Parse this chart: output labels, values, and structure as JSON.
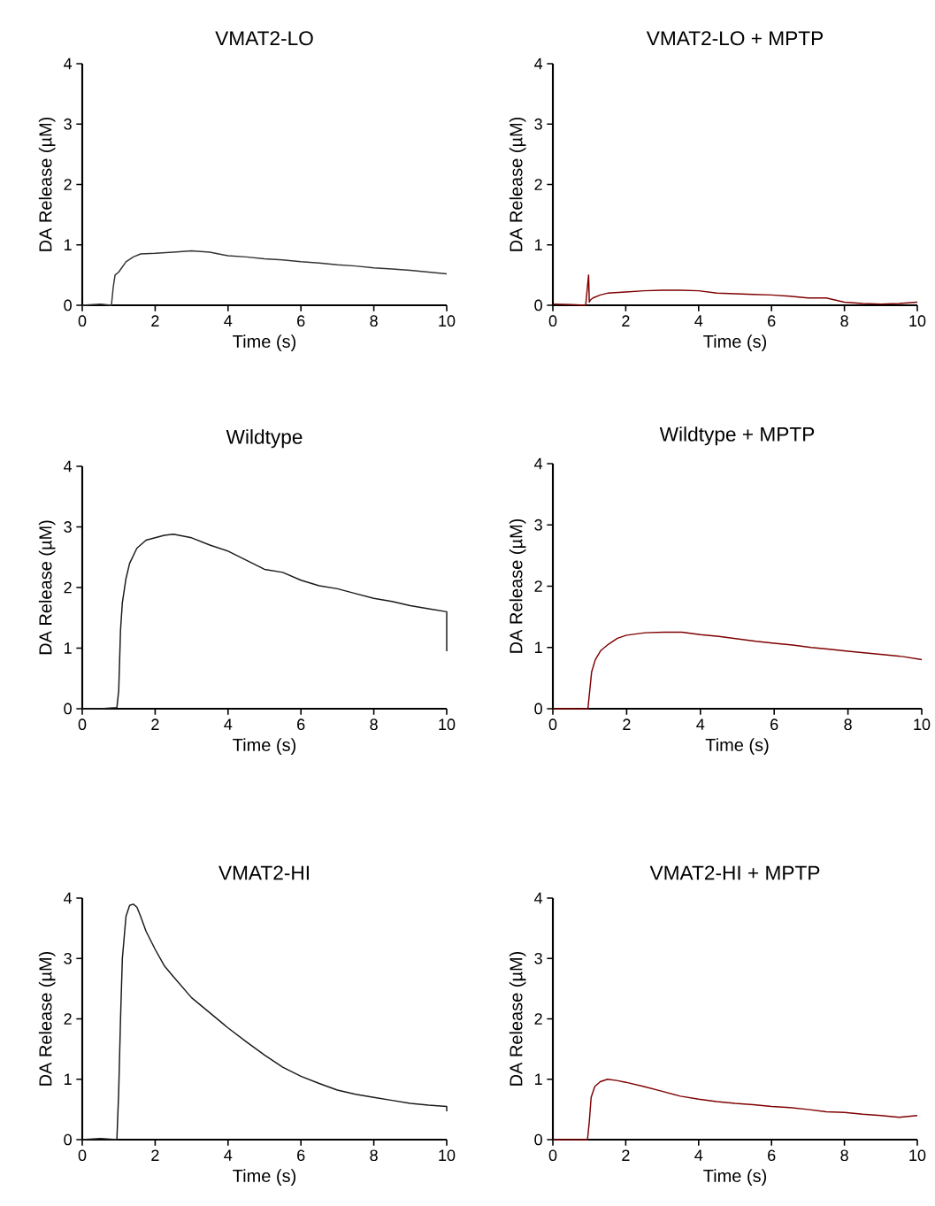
{
  "chart_data": [
    {
      "type": "line",
      "title": "VMAT2-LO",
      "xlabel": "Time (s)",
      "ylabel": "DA Release (µM)",
      "xlim": [
        0,
        10
      ],
      "ylim": [
        0,
        4
      ],
      "xticks": [
        0,
        2,
        4,
        6,
        8,
        10
      ],
      "yticks": [
        0,
        1,
        2,
        3,
        4
      ],
      "series": [
        {
          "color": "#333333",
          "x": [
            0,
            0.5,
            0.8,
            0.85,
            0.9,
            1.0,
            1.2,
            1.4,
            1.6,
            2,
            2.5,
            3,
            3.5,
            4,
            4.5,
            5,
            5.5,
            6,
            6.5,
            7,
            7.5,
            8,
            8.5,
            9,
            9.5,
            10
          ],
          "values": [
            0,
            0.02,
            0,
            0.3,
            0.5,
            0.55,
            0.72,
            0.8,
            0.85,
            0.86,
            0.88,
            0.9,
            0.88,
            0.82,
            0.8,
            0.77,
            0.75,
            0.72,
            0.7,
            0.67,
            0.65,
            0.62,
            0.6,
            0.58,
            0.55,
            0.52
          ]
        }
      ]
    },
    {
      "type": "line",
      "title": "VMAT2-LO + MPTP",
      "xlabel": "Time (s)",
      "ylabel": "DA Release (µM)",
      "xlim": [
        0,
        10
      ],
      "ylim": [
        0,
        4
      ],
      "xticks": [
        0,
        2,
        4,
        6,
        8,
        10
      ],
      "yticks": [
        0,
        1,
        2,
        3,
        4
      ],
      "series": [
        {
          "color": "#7f0000",
          "x": [
            0,
            0.5,
            0.9,
            0.98,
            1.0,
            1.02,
            1.1,
            1.3,
            1.5,
            2,
            2.5,
            3,
            3.5,
            4,
            4.5,
            5,
            5.5,
            6,
            6.5,
            7,
            7.5,
            8,
            8.5,
            9,
            9.5,
            10
          ],
          "values": [
            0.02,
            0.01,
            0,
            0.5,
            0.05,
            0.08,
            0.12,
            0.17,
            0.2,
            0.22,
            0.24,
            0.25,
            0.25,
            0.24,
            0.2,
            0.19,
            0.18,
            0.17,
            0.15,
            0.12,
            0.12,
            0.05,
            0.03,
            0.02,
            0.03,
            0.05
          ]
        }
      ]
    },
    {
      "type": "line",
      "title": "Wildtype",
      "xlabel": "Time (s)",
      "ylabel": "DA Release (µM)",
      "xlim": [
        0,
        10
      ],
      "ylim": [
        0,
        4
      ],
      "xticks": [
        0,
        2,
        4,
        6,
        8,
        10
      ],
      "yticks": [
        0,
        1,
        2,
        3,
        4
      ],
      "series": [
        {
          "color": "#1a1a1a",
          "x": [
            0,
            0.5,
            0.95,
            1.0,
            1.05,
            1.1,
            1.2,
            1.3,
            1.5,
            1.75,
            2,
            2.25,
            2.5,
            3,
            3.5,
            4,
            4.5,
            5,
            5.5,
            6,
            6.5,
            7,
            7.5,
            8,
            8.5,
            9,
            9.5,
            10,
            10
          ],
          "values": [
            0,
            0,
            0.02,
            0.3,
            1.3,
            1.75,
            2.15,
            2.4,
            2.65,
            2.78,
            2.82,
            2.86,
            2.88,
            2.82,
            2.7,
            2.6,
            2.45,
            2.3,
            2.25,
            2.12,
            2.03,
            1.98,
            1.9,
            1.82,
            1.77,
            1.7,
            1.65,
            1.6,
            0.95
          ]
        }
      ]
    },
    {
      "type": "line",
      "title": "Wildtype + MPTP",
      "xlabel": "Time (s)",
      "ylabel": "DA Release (µM)",
      "xlim": [
        0,
        10
      ],
      "ylim": [
        0,
        4
      ],
      "xticks": [
        0,
        2,
        4,
        6,
        8,
        10
      ],
      "yticks": [
        0,
        1,
        2,
        3,
        4
      ],
      "series": [
        {
          "color": "#7f0000",
          "x": [
            0,
            0.5,
            0.95,
            1.0,
            1.05,
            1.15,
            1.3,
            1.5,
            1.75,
            2,
            2.5,
            3,
            3.5,
            4,
            4.5,
            5,
            5.5,
            6,
            6.5,
            7,
            7.5,
            8,
            8.5,
            9,
            9.5,
            10
          ],
          "values": [
            0,
            0,
            0,
            0.3,
            0.6,
            0.8,
            0.95,
            1.05,
            1.15,
            1.2,
            1.24,
            1.25,
            1.25,
            1.21,
            1.18,
            1.14,
            1.1,
            1.07,
            1.04,
            1.0,
            0.97,
            0.94,
            0.91,
            0.88,
            0.85,
            0.8
          ]
        }
      ]
    },
    {
      "type": "line",
      "title": "VMAT2-HI",
      "xlabel": "Time (s)",
      "ylabel": "DA Release (µM)",
      "xlim": [
        0,
        10
      ],
      "ylim": [
        0,
        4
      ],
      "xticks": [
        0,
        2,
        4,
        6,
        8,
        10
      ],
      "yticks": [
        0,
        1,
        2,
        3,
        4
      ],
      "series": [
        {
          "color": "#1a1a1a",
          "x": [
            0,
            0.5,
            0.95,
            1.0,
            1.05,
            1.1,
            1.2,
            1.3,
            1.4,
            1.5,
            1.6,
            1.75,
            2,
            2.25,
            2.5,
            3,
            3.5,
            4,
            4.5,
            5,
            5.5,
            6,
            6.5,
            7,
            7.5,
            8,
            8.5,
            9,
            9.5,
            10,
            10
          ],
          "values": [
            0,
            0.02,
            0,
            0.8,
            2.0,
            3.0,
            3.7,
            3.88,
            3.9,
            3.85,
            3.7,
            3.45,
            3.15,
            2.88,
            2.7,
            2.35,
            2.1,
            1.85,
            1.62,
            1.4,
            1.2,
            1.05,
            0.93,
            0.82,
            0.75,
            0.7,
            0.65,
            0.6,
            0.57,
            0.55,
            0.47
          ]
        }
      ]
    },
    {
      "type": "line",
      "title": "VMAT2-HI + MPTP",
      "xlabel": "Time (s)",
      "ylabel": "DA Release (µM)",
      "xlim": [
        0,
        10
      ],
      "ylim": [
        0,
        4
      ],
      "xticks": [
        0,
        2,
        4,
        6,
        8,
        10
      ],
      "yticks": [
        0,
        1,
        2,
        3,
        4
      ],
      "series": [
        {
          "color": "#7f0000",
          "x": [
            0,
            0.5,
            0.95,
            1.0,
            1.05,
            1.15,
            1.3,
            1.5,
            1.75,
            2,
            2.5,
            3,
            3.5,
            4,
            4.5,
            5,
            5.5,
            6,
            6.5,
            7,
            7.5,
            8,
            8.5,
            9,
            9.5,
            10
          ],
          "values": [
            0,
            0,
            0,
            0.3,
            0.7,
            0.88,
            0.96,
            1.0,
            0.98,
            0.95,
            0.88,
            0.8,
            0.72,
            0.67,
            0.63,
            0.6,
            0.58,
            0.55,
            0.53,
            0.5,
            0.46,
            0.45,
            0.42,
            0.4,
            0.37,
            0.4
          ]
        }
      ]
    }
  ]
}
